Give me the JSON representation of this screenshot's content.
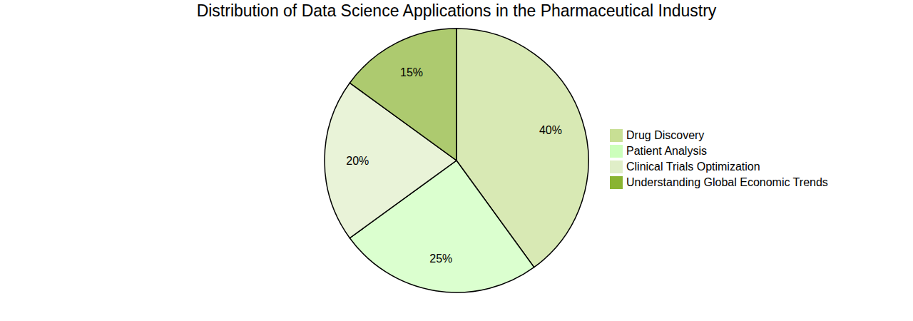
{
  "chart_data": {
    "type": "pie",
    "title": "Distribution of Data Science Applications in the Pharmaceutical Industry",
    "categories": [
      "Drug Discovery",
      "Patient Analysis",
      "Clinical Trials Optimization",
      "Understanding Global Economic Trends"
    ],
    "values": [
      40,
      25,
      20,
      15
    ],
    "value_labels": [
      "40%",
      "25%",
      "20%",
      "15%"
    ],
    "colors": [
      "#c8df94",
      "#ccffbb",
      "#e0eec8",
      "#8ab432"
    ],
    "data_labels": true,
    "legend": "right"
  }
}
